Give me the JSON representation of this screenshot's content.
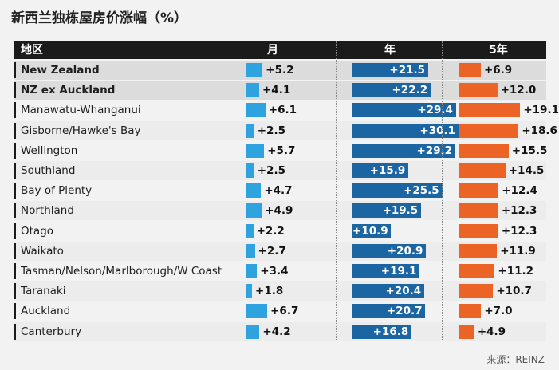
{
  "title": "新西兰独栋屋房价涨幅（%）",
  "source": "来源：REINZ",
  "chart_data": {
    "type": "bar",
    "title": "新西兰独栋屋房价涨幅（%）",
    "columns": [
      "地区",
      "月",
      "年",
      "5年"
    ],
    "categories": [
      "New Zealand",
      "NZ ex Auckland",
      "Manawatu-Whanganui",
      "Gisborne/Hawke's Bay",
      "Wellington",
      "Southland",
      "Bay of Plenty",
      "Northland",
      "Otago",
      "Waikato",
      "Tasman/Nelson/Marlborough/W Coast",
      "Taranaki",
      "Auckland",
      "Canterbury"
    ],
    "highlighted": [
      "New Zealand",
      "NZ ex Auckland"
    ],
    "series": [
      {
        "name": "月",
        "color": "#2ea3df",
        "labels": [
          "+5.2",
          "+4.1",
          "+6.1",
          "+2.5",
          "+5.7",
          "+2.5",
          "+4.7",
          "+4.9",
          "+2.2",
          "+2.7",
          "+3.4",
          "+1.8",
          "+6.7",
          "+4.2"
        ],
        "values": [
          5.2,
          4.1,
          6.1,
          2.5,
          5.7,
          2.5,
          4.7,
          4.9,
          2.2,
          2.7,
          3.4,
          1.8,
          6.7,
          4.2
        ]
      },
      {
        "name": "年",
        "color": "#1c65a3",
        "labels": [
          "+21.5",
          "+22.2",
          "+29.4",
          "+30.1",
          "+29.2",
          "+15.9",
          "+25.5",
          "+19.5",
          "+10.9",
          "+20.9",
          "+19.1",
          "+20.4",
          "+20.7",
          "+16.8"
        ],
        "values": [
          21.5,
          22.2,
          29.4,
          30.1,
          29.2,
          15.9,
          25.5,
          19.5,
          10.9,
          20.9,
          19.1,
          20.4,
          20.7,
          16.8
        ]
      },
      {
        "name": "5年",
        "color": "#ec6326",
        "labels": [
          "+6.9",
          "+12.0",
          "+19.1",
          "+18.6",
          "+15.5",
          "+14.5",
          "+12.4",
          "+12.3",
          "+12.3",
          "+11.9",
          "+11.2",
          "+10.7",
          "+7.0",
          "+4.9"
        ],
        "values": [
          6.9,
          12.0,
          19.1,
          18.6,
          15.5,
          14.5,
          12.4,
          12.3,
          12.3,
          11.9,
          11.2,
          10.7,
          7.0,
          4.9
        ]
      }
    ]
  }
}
